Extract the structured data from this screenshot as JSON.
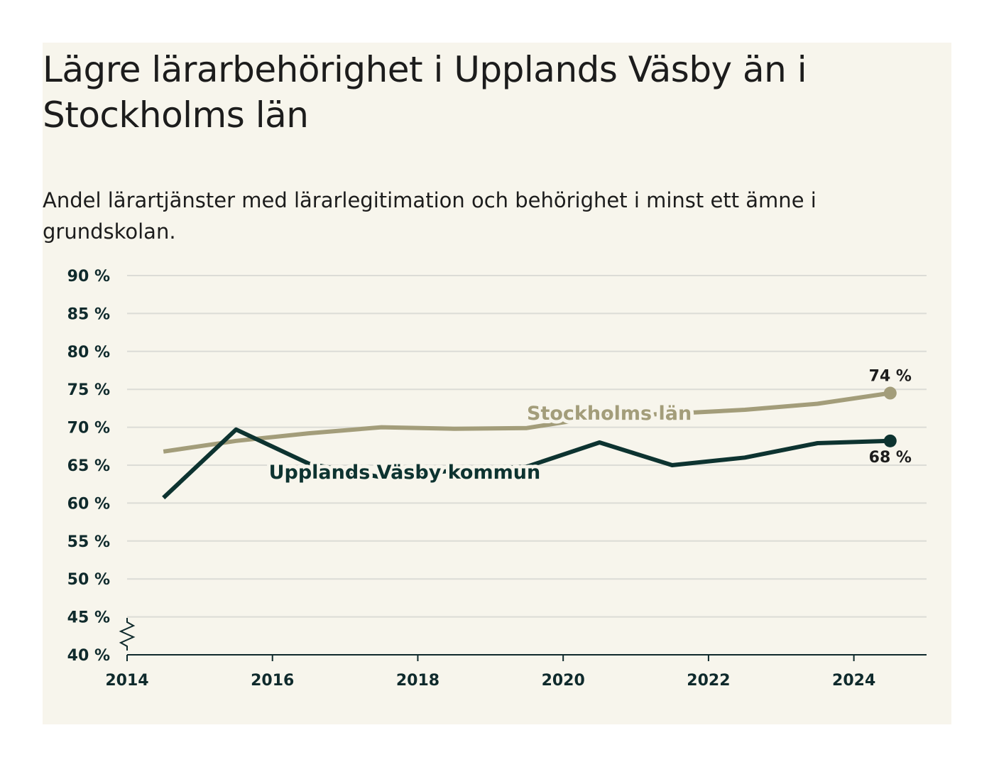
{
  "title": "Lägre lärarbehörighet i Upplands Väsby än i Stockholms län",
  "subtitle": "Andel lärartjänster med lärarlegitimation och behörighet i minst ett ämne i grundskolan.",
  "colors": {
    "background": "#f7f5ec",
    "grid": "#dcdcd6",
    "axis": "#0f2a2c",
    "stockholm": "#a39d7a",
    "vasby": "#0d3330"
  },
  "chart_data": {
    "type": "line",
    "title": "Lägre lärarbehörighet i Upplands Väsby än i Stockholms län",
    "subtitle": "Andel lärartjänster med lärarlegitimation och behörighet i minst ett ämne i grundskolan.",
    "xlim": [
      2014,
      2025
    ],
    "ylim": [
      40,
      90
    ],
    "y_ticks": [
      40,
      45,
      50,
      55,
      60,
      65,
      70,
      75,
      80,
      85,
      90
    ],
    "y_tick_labels": [
      "40 %",
      "45 %",
      "50 %",
      "55 %",
      "60 %",
      "65 %",
      "70 %",
      "75 %",
      "80 %",
      "85 %",
      "90 %"
    ],
    "x_ticks": [
      2014,
      2016,
      2018,
      2020,
      2022,
      2024
    ],
    "x_tick_labels": [
      "2014",
      "2016",
      "2018",
      "2020",
      "2022",
      "2024"
    ],
    "axis_break": true,
    "grid": true,
    "x": [
      2014.5,
      2015.5,
      2016.5,
      2017.5,
      2018.5,
      2019.5,
      2020.5,
      2021.5,
      2022.5,
      2023.5,
      2024.5
    ],
    "series": [
      {
        "name": "Stockholms län",
        "key": "stockholm",
        "values": [
          66.8,
          68.2,
          69.2,
          70.0,
          69.8,
          69.9,
          71.4,
          71.8,
          72.3,
          73.1,
          74.5
        ],
        "end_label": "74 %",
        "label_anchor": {
          "x": 2019.5,
          "y": 71.0
        }
      },
      {
        "name": "Upplands Väsby kommun",
        "key": "vasby",
        "values": [
          60.7,
          69.7,
          65.2,
          63.4,
          64.3,
          64.8,
          68.0,
          65.0,
          66.0,
          67.9,
          68.2
        ],
        "end_label": "68 %",
        "label_anchor": {
          "x": 2015.95,
          "y": 63.2
        }
      }
    ]
  }
}
